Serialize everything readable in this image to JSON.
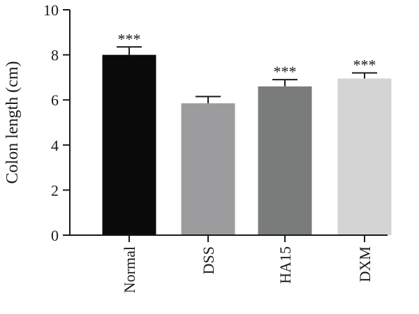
{
  "chart_data": {
    "type": "bar",
    "title": "",
    "xlabel": "",
    "ylabel": "Colon length (cm)",
    "ylim": [
      0,
      10
    ],
    "yticks": [
      0,
      2,
      4,
      6,
      8,
      10
    ],
    "grid": false,
    "categories": [
      "Normal",
      "DSS",
      "HA15",
      "DXM"
    ],
    "values": [
      8.0,
      5.85,
      6.6,
      6.95
    ],
    "errors": [
      0.35,
      0.3,
      0.3,
      0.25
    ],
    "significance": [
      "***",
      "",
      "***",
      "***"
    ],
    "colors": [
      "#0a0a0a",
      "#9c9c9e",
      "#7a7c7b",
      "#d4d4d4"
    ]
  }
}
